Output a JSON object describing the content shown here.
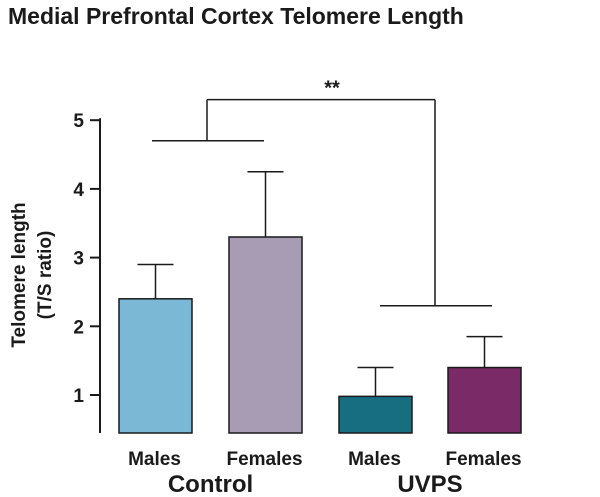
{
  "chart_data": {
    "type": "bar",
    "title": "Medial Prefrontal Cortex  Telomere Length",
    "ylabel_lines": [
      "Telomere length",
      "(T/S ratio)"
    ],
    "xlabel": "",
    "ylim": [
      0.5,
      5
    ],
    "yticks": [
      1,
      2,
      3,
      4,
      5
    ],
    "categories": [
      "Males",
      "Females",
      "Males",
      "Females"
    ],
    "groups": [
      {
        "label": "Control",
        "categories": [
          0,
          1
        ]
      },
      {
        "label": "UVPS",
        "categories": [
          2,
          3
        ]
      }
    ],
    "values": [
      2.4,
      3.3,
      0.98,
      1.4
    ],
    "errors": [
      0.5,
      0.95,
      0.42,
      0.45
    ],
    "colors": [
      "#7ab8d6",
      "#a89bb4",
      "#176e80",
      "#7a2a67"
    ],
    "significance": {
      "label": "**",
      "between_groups": [
        "Control",
        "UVPS"
      ],
      "bracket_value": 5.3,
      "group_line_values": [
        4.7,
        2.3
      ]
    }
  }
}
